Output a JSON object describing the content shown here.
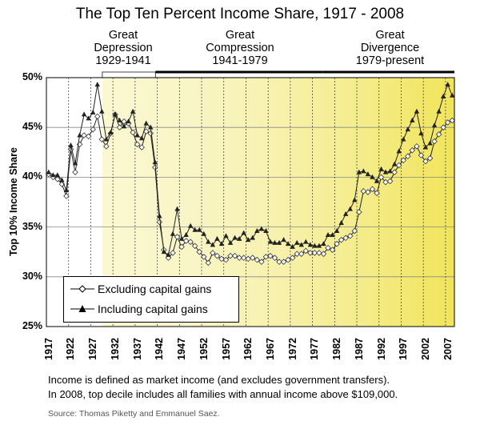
{
  "chart_data": {
    "type": "line",
    "title": "The Top Ten Percent Income Share, 1917 - 2008",
    "ylabel": "Top 10% Income Share",
    "ylim": [
      25,
      50
    ],
    "xlim": [
      1917,
      2008
    ],
    "y_ticks": [
      "25%",
      "30%",
      "35%",
      "40%",
      "45%",
      "50%"
    ],
    "x_ticks": [
      "1917",
      "1922",
      "1927",
      "1932",
      "1937",
      "1942",
      "1947",
      "1952",
      "1957",
      "1962",
      "1967",
      "1972",
      "1977",
      "1982",
      "1987",
      "1992",
      "1997",
      "2002",
      "2007"
    ],
    "grid": true,
    "legend": "bottom-left",
    "periods": [
      {
        "name": "Great",
        "name2": "Depression",
        "years": "1929-1941",
        "start": 1929,
        "end": 1941
      },
      {
        "name": "Great",
        "name2": "Compression",
        "years": "1941-1979",
        "start": 1941,
        "end": 1979
      },
      {
        "name": "Great",
        "name2": "Divergence",
        "years": "1979-present",
        "start": 1979,
        "end": 2008
      }
    ],
    "x": [
      1917,
      1918,
      1919,
      1920,
      1921,
      1922,
      1923,
      1924,
      1925,
      1926,
      1927,
      1928,
      1929,
      1930,
      1931,
      1932,
      1933,
      1934,
      1935,
      1936,
      1937,
      1938,
      1939,
      1940,
      1941,
      1942,
      1943,
      1944,
      1945,
      1946,
      1947,
      1948,
      1949,
      1950,
      1951,
      1952,
      1953,
      1954,
      1955,
      1956,
      1957,
      1958,
      1959,
      1960,
      1961,
      1962,
      1963,
      1964,
      1965,
      1966,
      1967,
      1968,
      1969,
      1970,
      1971,
      1972,
      1973,
      1974,
      1975,
      1976,
      1977,
      1978,
      1979,
      1980,
      1981,
      1982,
      1983,
      1984,
      1985,
      1986,
      1987,
      1988,
      1989,
      1990,
      1991,
      1992,
      1993,
      1994,
      1995,
      1996,
      1997,
      1998,
      1999,
      2000,
      2001,
      2002,
      2003,
      2004,
      2005,
      2006,
      2007,
      2008
    ],
    "series": [
      {
        "name": "Excluding capital gains",
        "values": [
          40.3,
          40.0,
          39.8,
          39.3,
          38.1,
          42.8,
          40.5,
          43.3,
          44.2,
          44.1,
          44.8,
          46.1,
          43.8,
          43.1,
          44.4,
          46.3,
          45.0,
          45.6,
          45.4,
          44.5,
          43.3,
          43.0,
          44.6,
          44.4,
          41.0,
          35.5,
          32.7,
          31.9,
          32.4,
          34.0,
          33.0,
          33.6,
          33.5,
          33.1,
          32.5,
          32.0,
          31.4,
          32.4,
          32.1,
          31.8,
          31.7,
          32.1,
          32.1,
          31.9,
          31.9,
          31.8,
          31.9,
          31.7,
          31.5,
          32.0,
          32.1,
          31.9,
          31.5,
          31.5,
          31.7,
          31.9,
          32.3,
          32.3,
          32.6,
          32.4,
          32.4,
          32.4,
          32.3,
          32.9,
          32.7,
          33.3,
          33.7,
          33.9,
          34.1,
          34.6,
          36.5,
          38.6,
          38.5,
          38.8,
          38.4,
          40.0,
          39.5,
          39.6,
          40.5,
          41.2,
          41.7,
          42.1,
          42.7,
          43.1,
          42.2,
          41.6,
          41.9,
          43.6,
          44.3,
          45.0,
          45.5,
          45.7
        ]
      },
      {
        "name": "Including capital gains",
        "values": [
          40.5,
          40.2,
          40.2,
          39.7,
          38.7,
          43.2,
          41.4,
          44.2,
          46.3,
          45.9,
          46.5,
          49.3,
          46.6,
          43.8,
          44.5,
          46.3,
          45.7,
          45.1,
          45.6,
          46.6,
          44.2,
          43.9,
          45.4,
          45.0,
          41.5,
          36.1,
          32.5,
          32.2,
          34.3,
          36.8,
          33.8,
          34.2,
          35.1,
          34.7,
          34.7,
          34.3,
          33.5,
          33.2,
          33.8,
          33.3,
          34.1,
          33.4,
          33.9,
          33.8,
          34.4,
          33.7,
          33.9,
          34.6,
          34.8,
          34.6,
          33.5,
          33.4,
          33.4,
          33.7,
          33.3,
          33.0,
          33.4,
          33.2,
          33.5,
          33.2,
          33.1,
          33.1,
          33.3,
          34.2,
          34.2,
          34.6,
          35.4,
          36.3,
          36.8,
          37.7,
          40.5,
          40.6,
          40.3,
          40.0,
          39.6,
          40.8,
          40.5,
          40.6,
          41.3,
          42.6,
          43.8,
          44.8,
          45.7,
          46.6,
          44.4,
          43.0,
          43.4,
          45.2,
          46.6,
          48.1,
          49.3,
          48.2
        ]
      }
    ],
    "notes": [
      "Income is defined as market income (and excludes government transfers).",
      "In 2008, top decile includes all families with annual income above $109,000."
    ],
    "source": "Source: Thomas Piketty and Emmanuel Saez."
  }
}
